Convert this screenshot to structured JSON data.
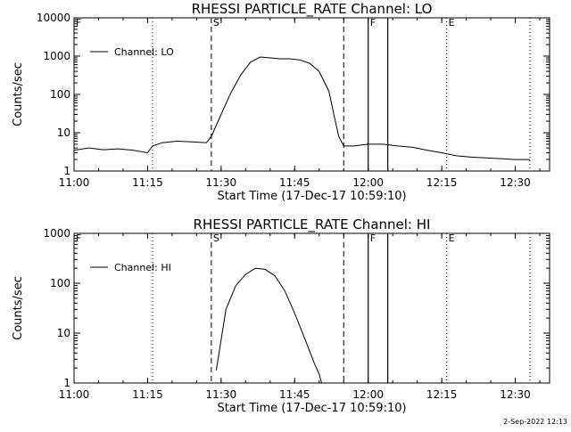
{
  "footer": {
    "timestamp": "2-Sep-2022 12:13"
  },
  "chart_data": [
    {
      "type": "line",
      "title": "RHESSI PARTICLE_RATE Channel: LO",
      "xlabel": "Start Time (17-Dec-17 10:59:10)",
      "ylabel": "Counts/sec",
      "yscale": "log",
      "xlim": [
        "11:00",
        "12:37"
      ],
      "ylim": [
        1,
        10000
      ],
      "x_ticks": [
        "11:00",
        "11:15",
        "11:30",
        "11:45",
        "12:00",
        "12:15",
        "12:30"
      ],
      "y_ticks": [
        "1",
        "10",
        "100",
        "1000",
        "10000"
      ],
      "markers": {
        "F": "11:00",
        "S": "11:28",
        "F2": "12:00",
        "E": "12:16"
      },
      "vlines": {
        "dotted": [
          "11:00",
          "11:16",
          "12:16",
          "12:33"
        ],
        "dashed": [
          "11:28",
          "11:55"
        ],
        "solid": [
          "12:00",
          "12:04"
        ]
      },
      "series": [
        {
          "name": "Channel: LO",
          "x": [
            "11:00",
            "11:03",
            "11:06",
            "11:09",
            "11:12",
            "11:15",
            "11:16",
            "11:18",
            "11:21",
            "11:24",
            "11:27",
            "11:28",
            "11:30",
            "11:32",
            "11:34",
            "11:36",
            "11:38",
            "11:40",
            "11:42",
            "11:44",
            "11:46",
            "11:48",
            "11:50",
            "11:52",
            "11:53",
            "11:54",
            "11:55",
            "11:57",
            "12:00",
            "12:03",
            "12:06",
            "12:09",
            "12:12",
            "12:15",
            "12:18",
            "12:21",
            "12:24",
            "12:27",
            "12:30",
            "12:33"
          ],
          "values": [
            3.5,
            4,
            3.6,
            3.8,
            3.5,
            3.0,
            4.5,
            5.5,
            6,
            5.8,
            5.5,
            8,
            30,
            110,
            320,
            700,
            950,
            900,
            850,
            850,
            800,
            650,
            400,
            120,
            30,
            8,
            4.5,
            4.5,
            5,
            5,
            4.5,
            4.2,
            3.5,
            3,
            2.5,
            2.3,
            2.2,
            2.1,
            2.0,
            2.0
          ]
        }
      ]
    },
    {
      "type": "line",
      "title": "RHESSI PARTICLE_RATE Channel: HI",
      "xlabel": "Start Time (17-Dec-17 10:59:10)",
      "ylabel": "Counts/sec",
      "yscale": "log",
      "xlim": [
        "11:00",
        "12:37"
      ],
      "ylim": [
        1,
        1000
      ],
      "x_ticks": [
        "11:00",
        "11:15",
        "11:30",
        "11:45",
        "12:00",
        "12:15",
        "12:30"
      ],
      "y_ticks": [
        "1",
        "10",
        "100",
        "1000"
      ],
      "markers": {
        "F": "11:00",
        "S": "11:28",
        "F2": "12:00",
        "E": "12:16"
      },
      "vlines": {
        "dotted": [
          "11:00",
          "11:16",
          "12:16",
          "12:33"
        ],
        "dashed": [
          "11:28",
          "11:55"
        ],
        "solid": [
          "12:00",
          "12:04"
        ]
      },
      "series": [
        {
          "name": "Channel: HI",
          "x": [
            "11:29",
            "11:31",
            "11:33",
            "11:35",
            "11:37",
            "11:39",
            "11:41",
            "11:43",
            "11:45",
            "11:47",
            "11:49",
            "11:50",
            "11:50.5"
          ],
          "values": [
            1.8,
            30,
            90,
            150,
            200,
            190,
            140,
            70,
            25,
            8,
            2.5,
            1.5,
            1.0
          ]
        }
      ]
    }
  ]
}
